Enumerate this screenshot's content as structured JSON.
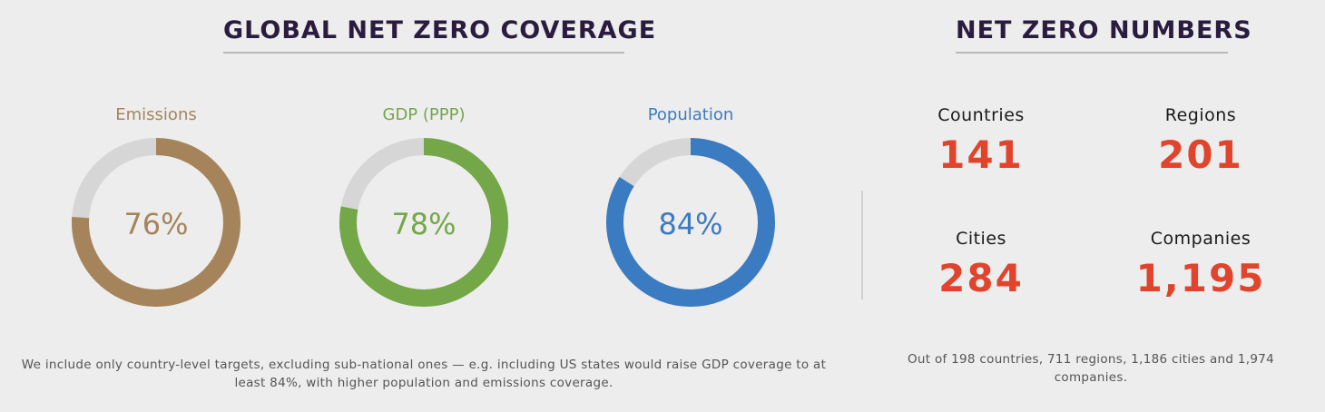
{
  "titles": {
    "coverage": "GLOBAL NET ZERO COVERAGE",
    "numbers": "NET ZERO NUMBERS"
  },
  "chart_data": {
    "type": "donut",
    "title": "GLOBAL NET ZERO COVERAGE",
    "items": [
      {
        "label": "Emissions",
        "value": 76,
        "display": "76%",
        "color": "#a6845b"
      },
      {
        "label": "GDP (PPP)",
        "value": 78,
        "display": "78%",
        "color": "#74a748"
      },
      {
        "label": "Population",
        "value": 84,
        "display": "84%",
        "color": "#3b7bc2"
      }
    ],
    "track_color": "#d6d6d6"
  },
  "stats": [
    {
      "label": "Countries",
      "value": "141"
    },
    {
      "label": "Regions",
      "value": "201"
    },
    {
      "label": "Cities",
      "value": "284"
    },
    {
      "label": "Companies",
      "value": "1,195"
    }
  ],
  "notes": {
    "coverage": "We include only country-level targets, excluding sub-national ones — e.g. including US states would raise GDP coverage to at least 84%, with higher population and emissions coverage.",
    "numbers": "Out of 198 countries, 711 regions, 1,186 cities and 1,974 companies."
  },
  "colors": {
    "title": "#2a1c3e",
    "stat_value": "#e0442c"
  }
}
